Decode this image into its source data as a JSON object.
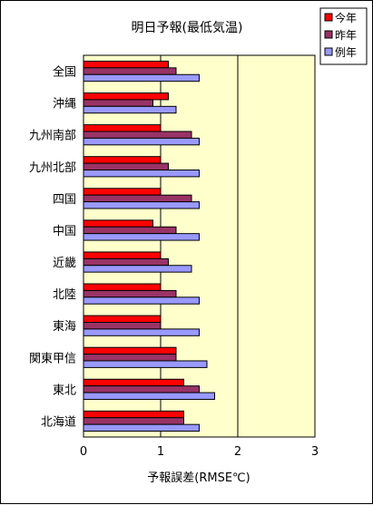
{
  "chart_data": {
    "type": "bar",
    "orientation": "horizontal",
    "title": "明日予報(最低気温)",
    "xlabel": "予報誤差(RMSE℃)",
    "ylabel": "",
    "xlim": [
      0,
      3
    ],
    "xticks": [
      "0",
      "1",
      "2",
      "3"
    ],
    "grid": "vertical major gridlines",
    "legend_position": "top-right",
    "categories": [
      "全国",
      "沖縄",
      "九州南部",
      "九州北部",
      "四国",
      "中国",
      "近畿",
      "北陸",
      "東海",
      "関東甲信",
      "東北",
      "北海道"
    ],
    "series": [
      {
        "name": "今年",
        "color": "#ff0000",
        "values": [
          1.1,
          1.1,
          1.0,
          1.0,
          1.0,
          0.9,
          1.0,
          1.0,
          1.0,
          1.2,
          1.3,
          1.3
        ]
      },
      {
        "name": "昨年",
        "color": "#993366",
        "values": [
          1.2,
          0.9,
          1.4,
          1.1,
          1.4,
          1.2,
          1.1,
          1.2,
          1.0,
          1.2,
          1.5,
          1.3
        ]
      },
      {
        "name": "例年",
        "color": "#9999ff",
        "values": [
          1.5,
          1.2,
          1.5,
          1.5,
          1.5,
          1.5,
          1.4,
          1.5,
          1.5,
          1.6,
          1.7,
          1.5
        ]
      }
    ]
  }
}
